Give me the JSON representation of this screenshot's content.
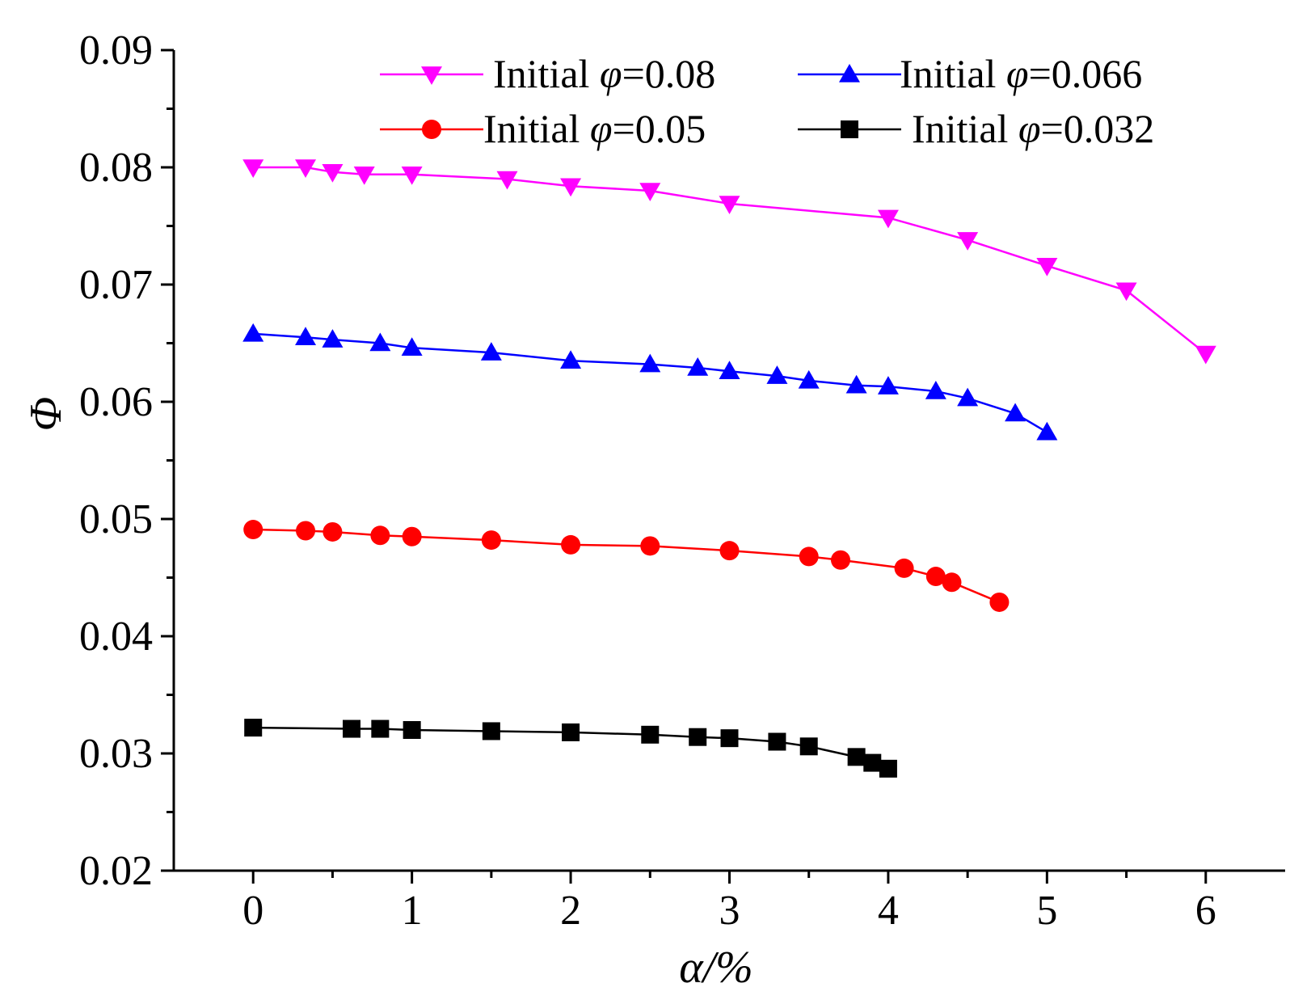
{
  "chart_data": {
    "type": "line",
    "title": "",
    "xlabel": "α/%",
    "ylabel": "Φ",
    "xlim": [
      -0.5,
      6.5
    ],
    "ylim": [
      0.02,
      0.09
    ],
    "xticks": [
      0,
      1,
      2,
      3,
      4,
      5,
      6
    ],
    "xtick_labels": [
      "0",
      "1",
      "2",
      "3",
      "4",
      "5",
      "6"
    ],
    "yticks": [
      0.02,
      0.03,
      0.04,
      0.05,
      0.06,
      0.07,
      0.08,
      0.09
    ],
    "ytick_labels": [
      "0.02",
      "0.03",
      "0.04",
      "0.05",
      "0.06",
      "0.07",
      "0.08",
      "0.09"
    ],
    "grid": false,
    "legend_position": "top",
    "series": [
      {
        "name": "Initial φ=0.08",
        "legend_prefix": "Initial ",
        "legend_symbol": "φ",
        "legend_value": "=0.08",
        "color": "#ff00ff",
        "marker": "triangle-down",
        "x": [
          0,
          0.33,
          0.5,
          0.7,
          1.0,
          1.6,
          2.0,
          2.5,
          3.0,
          4.0,
          4.5,
          5.0,
          5.5,
          6.0
        ],
        "values": [
          0.08,
          0.08,
          0.0796,
          0.0794,
          0.0794,
          0.079,
          0.0784,
          0.078,
          0.0769,
          0.0757,
          0.0738,
          0.0716,
          0.0695,
          0.0641
        ]
      },
      {
        "name": "Initial φ=0.066",
        "legend_prefix": "Initial ",
        "legend_symbol": "φ",
        "legend_value": "=0.066",
        "color": "#0000ff",
        "marker": "triangle-up",
        "x": [
          0,
          0.33,
          0.5,
          0.8,
          1.0,
          1.5,
          2.0,
          2.5,
          2.8,
          3.0,
          3.3,
          3.5,
          3.8,
          4.0,
          4.3,
          4.5,
          4.8,
          5.0
        ],
        "values": [
          0.0658,
          0.0655,
          0.0653,
          0.065,
          0.0646,
          0.0642,
          0.0635,
          0.0632,
          0.0629,
          0.0626,
          0.0622,
          0.0618,
          0.0614,
          0.0613,
          0.0609,
          0.0603,
          0.059,
          0.0574
        ]
      },
      {
        "name": "Initial φ=0.05",
        "legend_prefix": "Initial ",
        "legend_symbol": "φ",
        "legend_value": "=0.05",
        "color": "#ff0000",
        "marker": "circle",
        "x": [
          0,
          0.33,
          0.5,
          0.8,
          1.0,
          1.5,
          2.0,
          2.5,
          3.0,
          3.5,
          3.7,
          4.1,
          4.3,
          4.4,
          4.7
        ],
        "values": [
          0.0491,
          0.049,
          0.0489,
          0.0486,
          0.0485,
          0.0482,
          0.0478,
          0.0477,
          0.0473,
          0.0468,
          0.0465,
          0.0458,
          0.0451,
          0.0446,
          0.0429
        ]
      },
      {
        "name": "Initial φ=0.032",
        "legend_prefix": "Initial ",
        "legend_symbol": "φ",
        "legend_value": "=0.032",
        "color": "#000000",
        "marker": "square",
        "x": [
          0,
          0.62,
          0.8,
          1.0,
          1.5,
          2.0,
          2.5,
          2.8,
          3.0,
          3.3,
          3.5,
          3.8,
          3.9,
          4.0
        ],
        "values": [
          0.0322,
          0.0321,
          0.0321,
          0.032,
          0.0319,
          0.0318,
          0.0316,
          0.0314,
          0.0313,
          0.031,
          0.0306,
          0.0297,
          0.0292,
          0.0287
        ]
      }
    ]
  }
}
